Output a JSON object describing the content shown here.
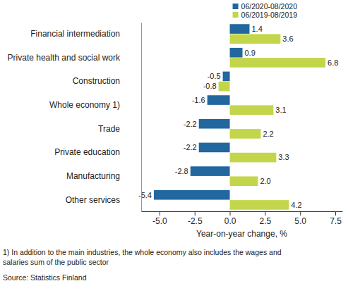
{
  "chart_data": {
    "type": "bar",
    "orientation": "horizontal",
    "categories": [
      "Financial intermediation",
      "Private health and social work",
      "Construction",
      "Whole economy 1)",
      "Trade",
      "Private education",
      "Manufacturing",
      "Other services"
    ],
    "series": [
      {
        "name": "06/2020-08/2020",
        "color": "#22679e",
        "values": [
          1.4,
          0.9,
          -0.5,
          -1.6,
          -2.2,
          -2.2,
          -2.8,
          -5.4
        ],
        "value_labels": [
          "1.4",
          "0.9",
          "-0.5",
          "-1.6",
          "-2.2",
          "-2.2",
          "-2.8",
          "-5.4"
        ]
      },
      {
        "name": "06/2019-08/2019",
        "color": "#c3d64b",
        "values": [
          3.6,
          6.8,
          -0.8,
          3.1,
          2.2,
          3.3,
          2.0,
          4.2
        ],
        "value_labels": [
          "3.6",
          "6.8",
          "-0.8",
          "3.1",
          "2.2",
          "3.3",
          "2.0",
          "4.2"
        ]
      }
    ],
    "xlim": [
      -6.3,
      8.0
    ],
    "xticks": [
      {
        "value": -5,
        "label": "-5.0"
      },
      {
        "value": -2.5,
        "label": "-2.5"
      },
      {
        "value": 0,
        "label": "0.0"
      },
      {
        "value": 2.5,
        "label": "2.5"
      },
      {
        "value": 5,
        "label": "5.0"
      },
      {
        "value": 7.5,
        "label": "7.5"
      }
    ],
    "x_label": "Year-on-year change, %",
    "footnote": [
      "1) In addition to the main industries, the whole economy also includes the wages and",
      "salaries sum of the public sector"
    ],
    "source": "Source: Statistics Finland",
    "legend": "upper center",
    "data_labels": true,
    "grid": false
  }
}
